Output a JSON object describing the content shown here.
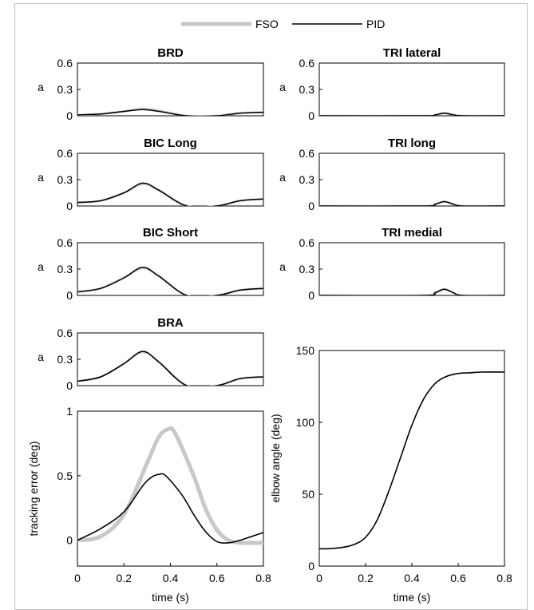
{
  "legend": {
    "entries": [
      {
        "label": "FSO",
        "color": "#c8c8c8"
      },
      {
        "label": "PID",
        "color": "#000000"
      }
    ]
  },
  "chart_data": [
    {
      "type": "line",
      "title": "BRD",
      "xlabel": "",
      "ylabel": "a",
      "xlim": [
        0,
        0.8
      ],
      "ylim": [
        0,
        0.6
      ],
      "yticks": [
        "0",
        "0.3",
        "0.6"
      ],
      "grid": false,
      "series": [
        {
          "name": "FSO",
          "x": [
            0,
            0.1,
            0.2,
            0.28,
            0.35,
            0.47,
            0.6,
            0.7,
            0.8
          ],
          "values": [
            0.01,
            0.02,
            0.05,
            0.08,
            0.06,
            0.0,
            0.0,
            0.03,
            0.04
          ]
        },
        {
          "name": "PID",
          "x": [
            0,
            0.1,
            0.2,
            0.28,
            0.35,
            0.47,
            0.6,
            0.7,
            0.8
          ],
          "values": [
            0.01,
            0.02,
            0.05,
            0.07,
            0.05,
            0.0,
            0.0,
            0.03,
            0.04
          ]
        }
      ]
    },
    {
      "type": "line",
      "title": "TRI lateral",
      "xlabel": "",
      "ylabel": "a",
      "xlim": [
        0,
        0.8
      ],
      "ylim": [
        0,
        0.6
      ],
      "yticks": [
        "0",
        "0.3",
        "0.6"
      ],
      "grid": false,
      "series": [
        {
          "name": "FSO",
          "x": [
            0,
            0.45,
            0.5,
            0.54,
            0.58,
            0.62,
            0.8
          ],
          "values": [
            0.0,
            0.0,
            0.01,
            0.03,
            0.01,
            0.0,
            0.0
          ]
        },
        {
          "name": "PID",
          "x": [
            0,
            0.45,
            0.5,
            0.54,
            0.58,
            0.62,
            0.8
          ],
          "values": [
            0.0,
            0.0,
            0.01,
            0.03,
            0.01,
            0.0,
            0.0
          ]
        }
      ]
    },
    {
      "type": "line",
      "title": "BIC Long",
      "xlabel": "",
      "ylabel": "a",
      "xlim": [
        0,
        0.8
      ],
      "ylim": [
        0,
        0.6
      ],
      "yticks": [
        "0",
        "0.3",
        "0.6"
      ],
      "grid": false,
      "series": [
        {
          "name": "FSO",
          "x": [
            0,
            0.1,
            0.2,
            0.28,
            0.35,
            0.47,
            0.6,
            0.7,
            0.8
          ],
          "values": [
            0.04,
            0.06,
            0.15,
            0.25,
            0.18,
            0.0,
            0.0,
            0.06,
            0.08
          ]
        },
        {
          "name": "PID",
          "x": [
            0,
            0.1,
            0.2,
            0.28,
            0.35,
            0.47,
            0.6,
            0.7,
            0.8
          ],
          "values": [
            0.04,
            0.06,
            0.15,
            0.26,
            0.18,
            0.0,
            0.0,
            0.06,
            0.08
          ]
        }
      ]
    },
    {
      "type": "line",
      "title": "TRI long",
      "xlabel": "",
      "ylabel": "a",
      "xlim": [
        0,
        0.8
      ],
      "ylim": [
        0,
        0.6
      ],
      "yticks": [
        "0",
        "0.3",
        "0.6"
      ],
      "grid": false,
      "series": [
        {
          "name": "FSO",
          "x": [
            0,
            0.45,
            0.5,
            0.54,
            0.58,
            0.62,
            0.8
          ],
          "values": [
            0.0,
            0.0,
            0.02,
            0.05,
            0.02,
            0.0,
            0.0
          ]
        },
        {
          "name": "PID",
          "x": [
            0,
            0.45,
            0.5,
            0.54,
            0.58,
            0.62,
            0.8
          ],
          "values": [
            0.0,
            0.0,
            0.02,
            0.05,
            0.02,
            0.0,
            0.0
          ]
        }
      ]
    },
    {
      "type": "line",
      "title": "BIC Short",
      "xlabel": "",
      "ylabel": "a",
      "xlim": [
        0,
        0.8
      ],
      "ylim": [
        0,
        0.6
      ],
      "yticks": [
        "0",
        "0.3",
        "0.6"
      ],
      "grid": false,
      "series": [
        {
          "name": "FSO",
          "x": [
            0,
            0.1,
            0.2,
            0.28,
            0.35,
            0.47,
            0.6,
            0.7,
            0.8
          ],
          "values": [
            0.04,
            0.08,
            0.2,
            0.31,
            0.22,
            0.0,
            0.0,
            0.06,
            0.08
          ]
        },
        {
          "name": "PID",
          "x": [
            0,
            0.1,
            0.2,
            0.28,
            0.35,
            0.47,
            0.6,
            0.7,
            0.8
          ],
          "values": [
            0.04,
            0.08,
            0.2,
            0.32,
            0.22,
            0.0,
            0.0,
            0.06,
            0.08
          ]
        }
      ]
    },
    {
      "type": "line",
      "title": "TRI medial",
      "xlabel": "",
      "ylabel": "a",
      "xlim": [
        0,
        0.8
      ],
      "ylim": [
        0,
        0.6
      ],
      "yticks": [
        "0",
        "0.3",
        "0.6"
      ],
      "grid": false,
      "series": [
        {
          "name": "FSO",
          "x": [
            0,
            0.45,
            0.5,
            0.54,
            0.58,
            0.62,
            0.8
          ],
          "values": [
            0.0,
            0.0,
            0.03,
            0.07,
            0.03,
            0.0,
            0.0
          ]
        },
        {
          "name": "PID",
          "x": [
            0,
            0.45,
            0.5,
            0.54,
            0.58,
            0.62,
            0.8
          ],
          "values": [
            0.0,
            0.0,
            0.03,
            0.07,
            0.03,
            0.0,
            0.0
          ]
        }
      ]
    },
    {
      "type": "line",
      "title": "BRA",
      "xlabel": "",
      "ylabel": "a",
      "xlim": [
        0,
        0.8
      ],
      "ylim": [
        0,
        0.6
      ],
      "yticks": [
        "0",
        "0.3",
        "0.6"
      ],
      "grid": false,
      "series": [
        {
          "name": "FSO",
          "x": [
            0,
            0.1,
            0.2,
            0.28,
            0.35,
            0.47,
            0.6,
            0.7,
            0.8
          ],
          "values": [
            0.05,
            0.1,
            0.25,
            0.38,
            0.27,
            0.0,
            0.0,
            0.08,
            0.1
          ]
        },
        {
          "name": "PID",
          "x": [
            0,
            0.1,
            0.2,
            0.28,
            0.35,
            0.47,
            0.6,
            0.7,
            0.8
          ],
          "values": [
            0.05,
            0.1,
            0.25,
            0.39,
            0.27,
            0.0,
            0.0,
            0.08,
            0.1
          ]
        }
      ]
    },
    {
      "type": "line",
      "title": "",
      "xlabel": "time (s)",
      "ylabel": "tracking error (deg)",
      "xlim": [
        0,
        0.8
      ],
      "ylim": [
        -0.2,
        1
      ],
      "xticks": [
        "0",
        "0.2",
        "0.4",
        "0.6",
        "0.8"
      ],
      "yticks": [
        "0",
        "0.5",
        "1"
      ],
      "grid": false,
      "series": [
        {
          "name": "FSO",
          "x": [
            0,
            0.1,
            0.2,
            0.3,
            0.35,
            0.39,
            0.42,
            0.5,
            0.55,
            0.6,
            0.65,
            0.7,
            0.75,
            0.8
          ],
          "values": [
            0.0,
            0.03,
            0.2,
            0.6,
            0.8,
            0.86,
            0.83,
            0.5,
            0.25,
            0.08,
            0.0,
            -0.02,
            -0.02,
            -0.02
          ]
        },
        {
          "name": "PID",
          "x": [
            0,
            0.1,
            0.2,
            0.28,
            0.32,
            0.35,
            0.38,
            0.45,
            0.5,
            0.55,
            0.6,
            0.65,
            0.7,
            0.75,
            0.8
          ],
          "values": [
            0.0,
            0.09,
            0.22,
            0.42,
            0.49,
            0.51,
            0.5,
            0.35,
            0.2,
            0.07,
            -0.01,
            -0.02,
            0.0,
            0.03,
            0.06
          ]
        }
      ]
    },
    {
      "type": "line",
      "title": "",
      "xlabel": "time (s)",
      "ylabel": "elbow angle (deg)",
      "xlim": [
        0,
        0.8
      ],
      "ylim": [
        0,
        150
      ],
      "xticks": [
        "0",
        "0.2",
        "0.4",
        "0.6",
        "0.8"
      ],
      "yticks": [
        "0",
        "50",
        "100",
        "150"
      ],
      "grid": false,
      "series": [
        {
          "name": "PID",
          "x": [
            0,
            0.05,
            0.1,
            0.15,
            0.2,
            0.25,
            0.3,
            0.35,
            0.4,
            0.45,
            0.5,
            0.55,
            0.6,
            0.65,
            0.7,
            0.8
          ],
          "values": [
            12,
            12.2,
            13,
            15,
            20,
            32,
            52,
            75,
            98,
            116,
            127,
            132,
            134,
            134.5,
            135,
            135
          ]
        }
      ]
    }
  ]
}
